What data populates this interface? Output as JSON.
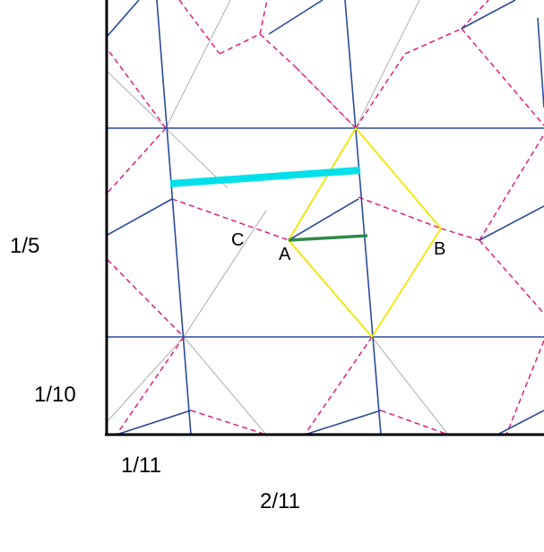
{
  "axis_labels": {
    "y_fifth": "1/5",
    "y_tenth": "1/10",
    "x_eleventh": "1/11",
    "x_two_elevenths": "2/11"
  },
  "points": {
    "a": "A",
    "b": "B",
    "c": "C"
  },
  "colors": {
    "solid_lines": "#2b4a9a",
    "dashed_lines": "#e0107a",
    "thin_lines": "#9a9a9a",
    "rhombus": "#f2e600",
    "cyan_bar": "#00e0ea",
    "green_bar": "#2e8a4a",
    "axes": "#000000"
  }
}
